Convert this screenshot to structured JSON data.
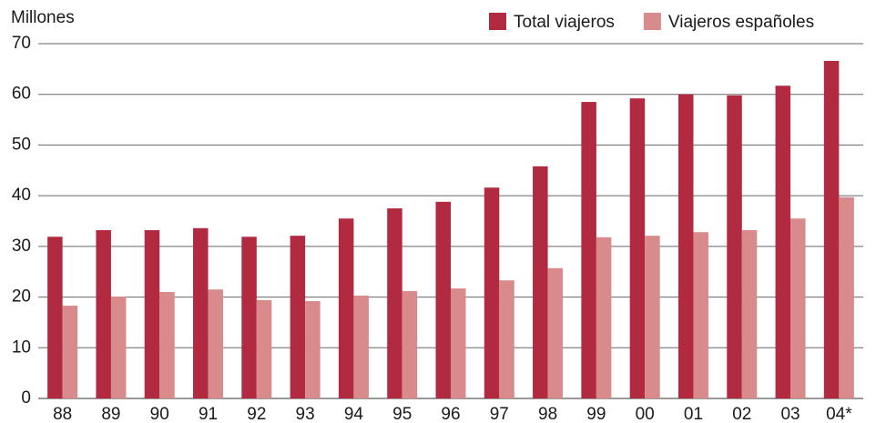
{
  "chart_data": {
    "type": "bar",
    "y_axis_label": "Millones",
    "categories": [
      "88",
      "89",
      "90",
      "91",
      "92",
      "93",
      "94",
      "95",
      "96",
      "97",
      "98",
      "99",
      "00",
      "01",
      "02",
      "03",
      "04*"
    ],
    "series": [
      {
        "name": "Total viajeros",
        "color": "#b22a3f",
        "values": [
          31.9,
          33.2,
          33.2,
          33.6,
          31.9,
          32.1,
          35.5,
          37.5,
          38.8,
          41.6,
          45.8,
          58.5,
          59.2,
          60.0,
          59.8,
          61.7,
          66.6
        ]
      },
      {
        "name": "Viajeros españoles",
        "color": "#d98a8a",
        "values": [
          18.3,
          20.1,
          21.0,
          21.5,
          19.4,
          19.2,
          20.3,
          21.2,
          21.7,
          23.3,
          25.7,
          31.8,
          32.1,
          32.8,
          33.2,
          35.5,
          39.7
        ]
      }
    ],
    "ylim": [
      0,
      70
    ],
    "yticks": [
      0,
      10,
      20,
      30,
      40,
      50,
      60,
      70
    ],
    "grid": true,
    "legend": "top-right"
  }
}
